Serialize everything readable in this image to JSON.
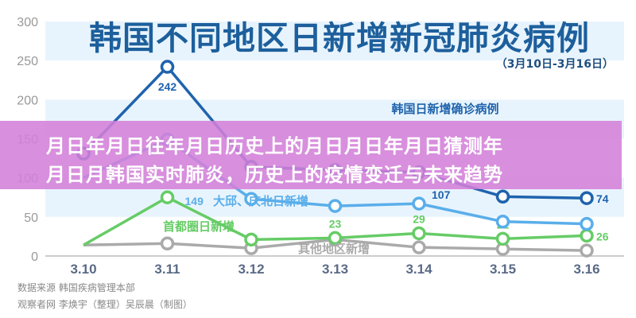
{
  "chart_data": {
    "type": "line",
    "title": "韩国不同地区日新增新冠肺炎病例",
    "subtitle": "（3月10日-3月16日）",
    "categories": [
      "3.10",
      "3.11",
      "3.12",
      "3.13",
      "3.14",
      "3.15",
      "3.16"
    ],
    "ylim": [
      0,
      300
    ],
    "yticks": [
      "0",
      "50",
      "100",
      "150",
      "200",
      "250",
      "300"
    ],
    "grid": "alternating horizontal bands",
    "series": [
      {
        "name": "韩国日新增确诊病例",
        "color": "#1f63ad",
        "values": [
          131,
          242,
          114,
          110,
          107,
          76,
          74
        ],
        "labels": {
          "1": "242",
          "4": "107",
          "6": "74"
        }
      },
      {
        "name": "大邱、庆北日新增",
        "color": "#5aaeea",
        "values": [
          100,
          149,
          73,
          64,
          67,
          44,
          41
        ],
        "labels": {
          "1": "149"
        }
      },
      {
        "name": "首都圈日新增",
        "color": "#66cc66",
        "values": [
          14,
          75,
          21,
          23,
          29,
          22,
          26
        ],
        "labels": {
          "3": "23",
          "4": "29",
          "5": "22",
          "6": "26"
        }
      },
      {
        "name": "其他地区新增",
        "color": "#aaaaaa",
        "values": [
          14,
          16,
          10,
          21,
          11,
          9,
          7
        ],
        "labels": {}
      }
    ]
  },
  "source_lines": [
    "数据来源 韩国疾病管理本部",
    "观察者网 李焕宇（整理）吴辰晨（制图）"
  ],
  "overlay": {
    "line1": "月日年月日往年月日历史上的月日月日年月日猜测年",
    "line2": "月日月韩国实时肺炎，历史上的疫情变迁与未来趋势"
  }
}
